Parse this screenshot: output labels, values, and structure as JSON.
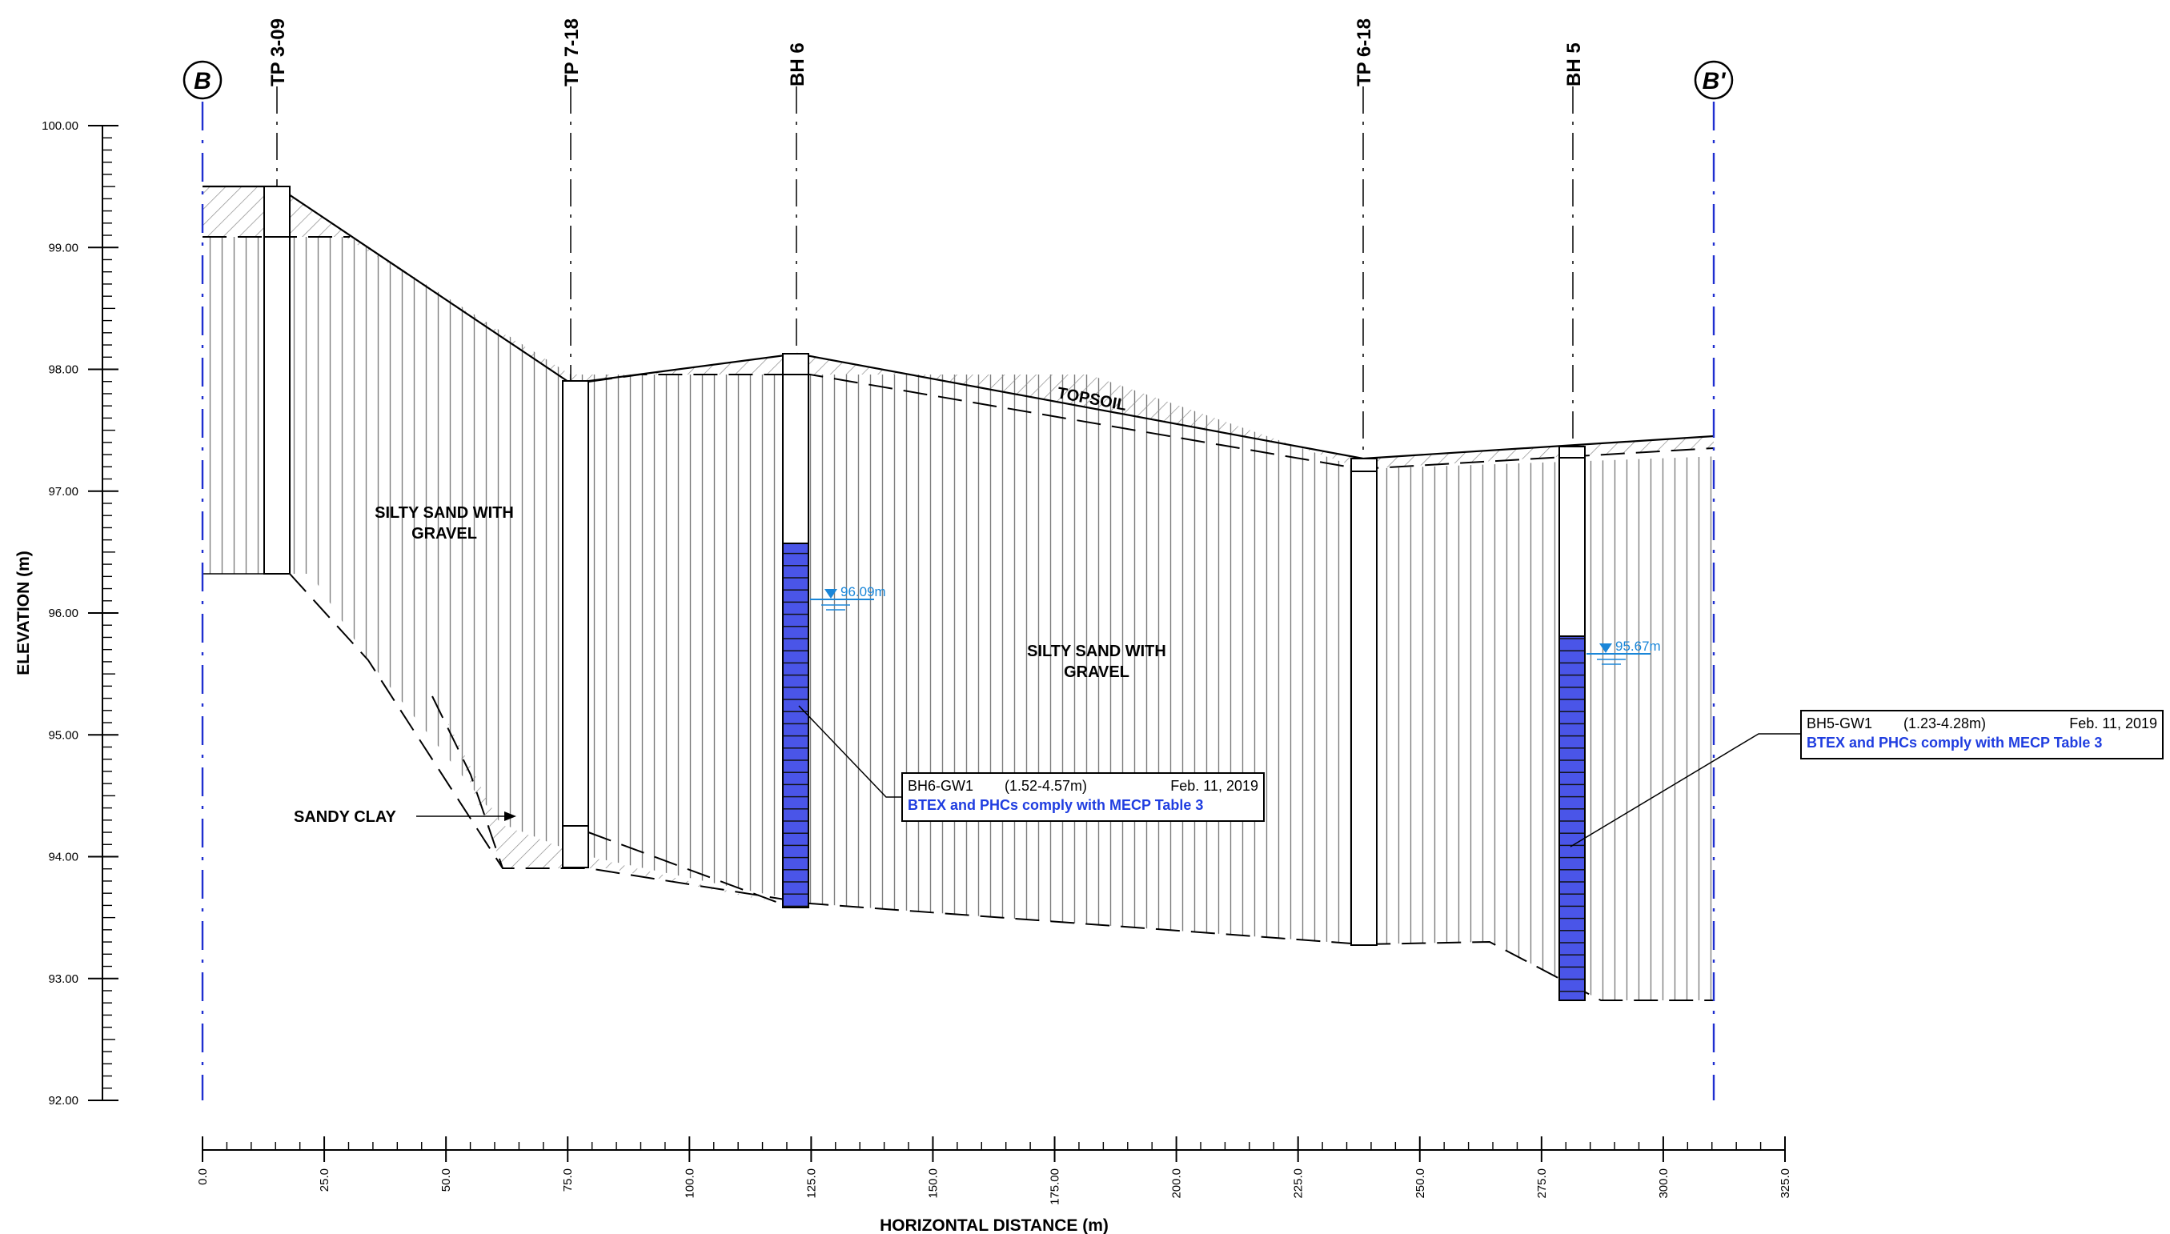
{
  "section": {
    "start_mark": "B",
    "end_mark": "B'"
  },
  "axes": {
    "xlabel": "HORIZONTAL DISTANCE (m)",
    "ylabel": "ELEVATION (m)",
    "x_ticks": [
      "0.0",
      "25.0",
      "50.0",
      "75.0",
      "100.0",
      "125.0",
      "150.0",
      "175.00",
      "200.0",
      "225.0",
      "250.0",
      "275.0",
      "300.0",
      "325.0"
    ],
    "y_ticks": [
      "92.00",
      "93.00",
      "94.00",
      "95.00",
      "96.00",
      "97.00",
      "98.00",
      "99.00",
      "100.00"
    ]
  },
  "boreholes": [
    {
      "name": "TP 3-09"
    },
    {
      "name": "TP 7-18"
    },
    {
      "name": "BH 6"
    },
    {
      "name": "TP 6-18"
    },
    {
      "name": "BH 5"
    }
  ],
  "water_levels": [
    {
      "label": "96.09m",
      "elevation": 96.09
    },
    {
      "label": "95.67m",
      "elevation": 95.67
    }
  ],
  "soil_labels": {
    "silty_sand_1": [
      "SILTY SAND WITH",
      "GRAVEL"
    ],
    "silty_sand_2": [
      "SILTY SAND WITH",
      "GRAVEL"
    ],
    "sandy_clay": "SANDY CLAY",
    "topsoil": "TOPSOIL"
  },
  "callouts": [
    {
      "sample": "BH6-GW1",
      "interval": "(1.52-4.57m)",
      "date": "Feb. 11, 2019",
      "result": "BTEX and PHCs comply with MECP Table 3"
    },
    {
      "sample": "BH5-GW1",
      "interval": "(1.23-4.28m)",
      "date": "Feb. 11, 2019",
      "result": "BTEX and PHCs comply with MECP Table 3"
    }
  ],
  "colors": {
    "section_line": "#1f2fd0",
    "screen": "#4a55e8",
    "water": "#1a86d8",
    "callout_text": "#1f3de0"
  }
}
